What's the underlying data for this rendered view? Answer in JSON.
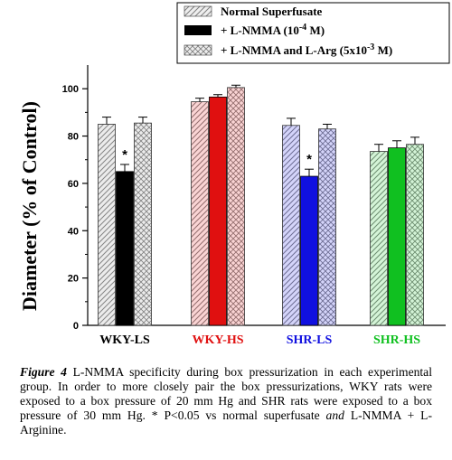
{
  "chart_data": {
    "type": "bar",
    "ylabel": "Diameter (% of Control)",
    "ylim": [
      0,
      110
    ],
    "yticks": [
      "0",
      "20",
      "40",
      "60",
      "80",
      "100"
    ],
    "categories": [
      {
        "label": "WKY-LS",
        "color": "#000000"
      },
      {
        "label": "WKY-HS",
        "color": "#e01010"
      },
      {
        "label": "SHR-LS",
        "color": "#1010e0"
      },
      {
        "label": "SHR-HS",
        "color": "#10c020"
      }
    ],
    "series": [
      {
        "name": "Normal Superfusate",
        "pattern": "diag",
        "values": [
          85,
          94.5,
          84.5,
          73.5
        ],
        "errors": [
          3,
          1.5,
          3,
          3
        ]
      },
      {
        "name": "L-NMMA",
        "pattern": "solid",
        "values": [
          65,
          96.5,
          63,
          75
        ],
        "errors": [
          3,
          1,
          3,
          3
        ]
      },
      {
        "name": "L-NMMA and L-Arg",
        "pattern": "cross",
        "values": [
          85.5,
          100.5,
          83,
          76.5
        ],
        "errors": [
          2.5,
          1,
          2,
          3
        ]
      }
    ],
    "legend": {
      "position": "top-right",
      "entries": [
        {
          "pre": "Normal Superfusate",
          "sup": "",
          "post": ""
        },
        {
          "pre": "+ L-NMMA (10",
          "sup": "-4",
          "post": " M)"
        },
        {
          "pre": "+ L-NMMA and L-Arg (5x10",
          "sup": "-3",
          "post": " M)"
        }
      ]
    },
    "annotations": [
      {
        "text": "*",
        "category": 0,
        "series": 1
      },
      {
        "text": "*",
        "category": 2,
        "series": 1
      }
    ],
    "grid": false
  },
  "caption": {
    "label": "Figure 4",
    "text_1": "  L-NMMA specificity during box pressurization in each experimental group.   In order to more closely pair the box pressurizations, WKY rats were exposed to a box pressure of 20 mm Hg and SHR rats were exposed to a box pressure of 30 mm Hg. * P<0.05 vs normal superfusate ",
    "and_1": "and",
    "text_2": " L-NMMA + L-Arginine."
  }
}
